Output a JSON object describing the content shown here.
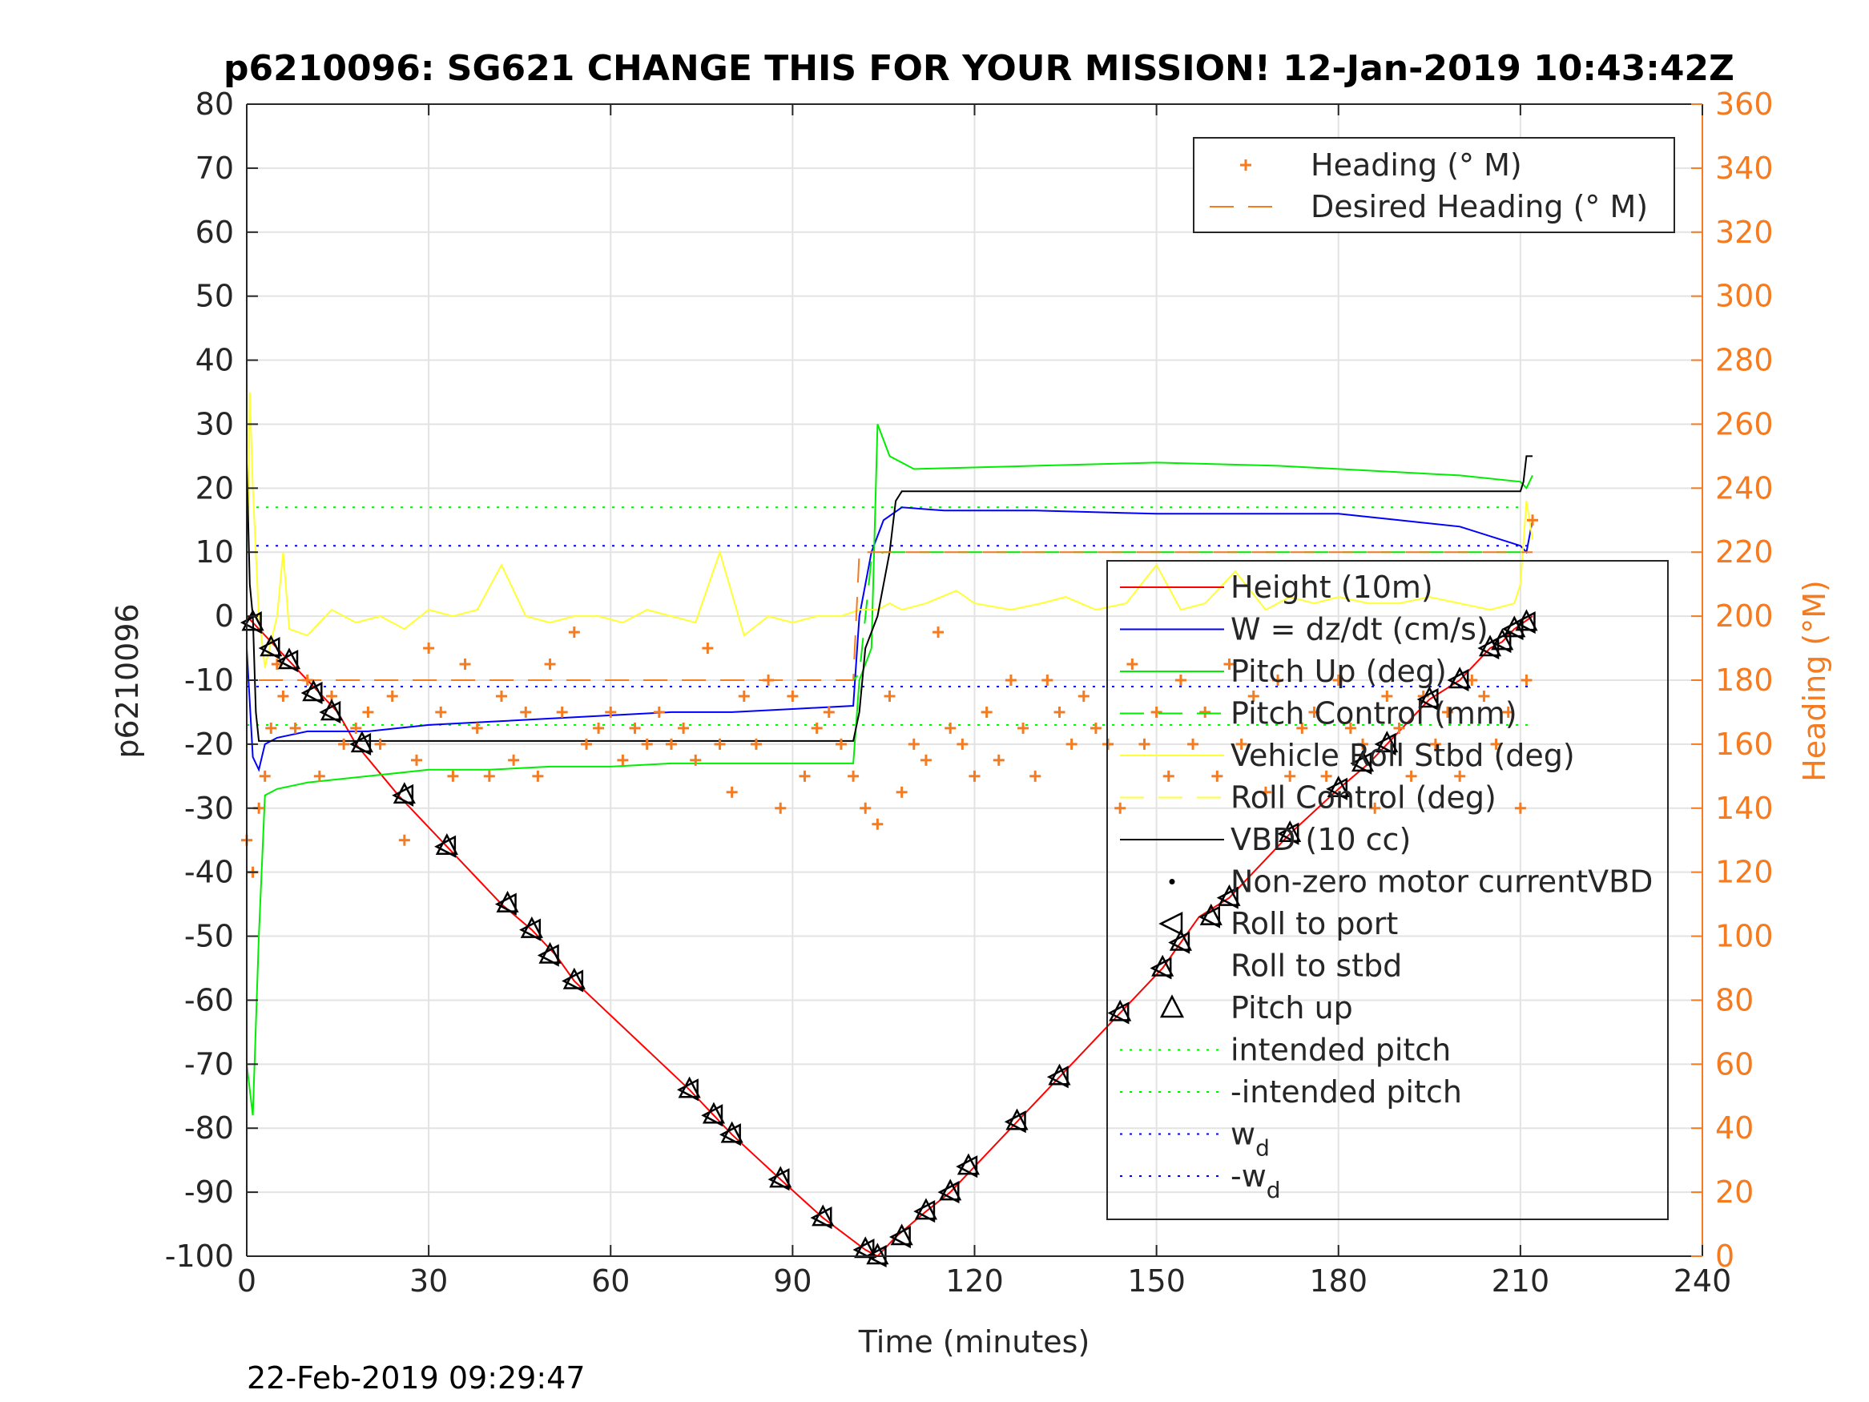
{
  "chart_data": {
    "type": "line",
    "title": "p6210096: SG621 CHANGE THIS FOR YOUR MISSION! 12-Jan-2019 10:43:42Z",
    "xlabel": "Time (minutes)",
    "ylabel": "p6210096",
    "y2label": "Heading (°M)",
    "footer": "22-Feb-2019 09:29:47",
    "xlim": [
      0,
      240
    ],
    "ylim": [
      -100,
      80
    ],
    "y2lim": [
      0,
      360
    ],
    "xticks": [
      "0",
      "30",
      "60",
      "90",
      "120",
      "150",
      "180",
      "210",
      "240"
    ],
    "yticks": [
      "80",
      "70",
      "60",
      "50",
      "40",
      "30",
      "20",
      "10",
      "0",
      "-10",
      "-20",
      "-30",
      "-40",
      "-50",
      "-60",
      "-70",
      "-80",
      "-90",
      "-100"
    ],
    "y2ticks": [
      "360",
      "340",
      "320",
      "300",
      "280",
      "260",
      "240",
      "220",
      "200",
      "180",
      "160",
      "140",
      "120",
      "100",
      "80",
      "60",
      "40",
      "20",
      "0"
    ],
    "grid": true,
    "colors": {
      "height": "#ff0000",
      "w": "#0000ff",
      "pitch": "#00ee00",
      "roll": "#ffff33",
      "vbd": "#000000",
      "heading": "#f47b20",
      "axis": "#262626"
    },
    "legend_right_axis": {
      "placement": "top-right",
      "entries": [
        {
          "label": "Heading (° M)",
          "style": "plus"
        },
        {
          "label": "Desired Heading (° M)",
          "style": "dashed"
        }
      ]
    },
    "legend_left_axis": {
      "placement": "right",
      "entries": [
        {
          "label": "Height (10m)",
          "style": "line",
          "color": "#ff0000"
        },
        {
          "label": "W = dz/dt (cm/s)",
          "style": "line",
          "color": "#0000ff"
        },
        {
          "label": "Pitch Up (deg)",
          "style": "line",
          "color": "#00ee00"
        },
        {
          "label": "Pitch Control (mm)",
          "style": "dashed",
          "color": "#00ee00"
        },
        {
          "label": "Vehicle Roll Stbd (deg)",
          "style": "line",
          "color": "#ffff33"
        },
        {
          "label": "Roll Control (deg)",
          "style": "dashed",
          "color": "#ffff33"
        },
        {
          "label": "VBD (10 cc)",
          "style": "line",
          "color": "#000000"
        },
        {
          "label": "Non-zero motor currentVBD",
          "style": "dot",
          "color": "#000000"
        },
        {
          "label": "Roll to port",
          "style": "tri-left",
          "color": "#000000"
        },
        {
          "label": "Roll to stbd",
          "style": "none",
          "color": "#000000"
        },
        {
          "label": "Pitch up",
          "style": "tri-up",
          "color": "#000000"
        },
        {
          "label": "intended pitch",
          "style": "dotted",
          "color": "#00ee00"
        },
        {
          "label": "-intended pitch",
          "style": "dotted",
          "color": "#00ee00"
        },
        {
          "label": "w",
          "sub": "d",
          "style": "dotted",
          "color": "#0000ff"
        },
        {
          "label": "-w",
          "sub": "d",
          "style": "dotted",
          "color": "#0000ff"
        }
      ]
    },
    "series": [
      {
        "name": "Height (10m)",
        "x": [
          0,
          1,
          3,
          5,
          8,
          12,
          15,
          18,
          25,
          32,
          42,
          47,
          51,
          54,
          73,
          77,
          80,
          88,
          95,
          102,
          104,
          107,
          112,
          116,
          120,
          127,
          134,
          144,
          151,
          154,
          157,
          162,
          172,
          180,
          185,
          188,
          195,
          200,
          205,
          207,
          209,
          212
        ],
        "y": [
          0,
          -1,
          -3,
          -5,
          -8,
          -12,
          -15,
          -20,
          -28,
          -35,
          -45,
          -49,
          -53,
          -57,
          -74,
          -78,
          -81,
          -88,
          -94,
          -99,
          -100,
          -97,
          -93,
          -90,
          -86,
          -79,
          -72,
          -62,
          -55,
          -51,
          -47,
          -44,
          -34,
          -27,
          -23,
          -20,
          -13,
          -10,
          -5,
          -4,
          -2,
          0
        ]
      },
      {
        "name": "W = dz/dt (cm/s)",
        "x": [
          0,
          1,
          2,
          3,
          5,
          10,
          20,
          30,
          40,
          50,
          60,
          70,
          80,
          90,
          100,
          101,
          103,
          105,
          108,
          115,
          130,
          150,
          170,
          180,
          190,
          200,
          210,
          211,
          212
        ],
        "y": [
          -5,
          -22,
          -24,
          -20,
          -19,
          -18,
          -18,
          -17,
          -16.5,
          -16,
          -15.5,
          -15,
          -15,
          -14.5,
          -14,
          0,
          10,
          15,
          17,
          16.5,
          16.5,
          16,
          16,
          16,
          15,
          14,
          11,
          10,
          15
        ]
      },
      {
        "name": "Pitch Up (deg)",
        "x": [
          0,
          1,
          2,
          3,
          5,
          10,
          20,
          30,
          40,
          50,
          60,
          70,
          80,
          90,
          100,
          101,
          103,
          104,
          106,
          110,
          130,
          150,
          170,
          180,
          190,
          200,
          210,
          211,
          212
        ],
        "y": [
          -70,
          -78,
          -50,
          -28,
          -27,
          -26,
          -25,
          -24,
          -24,
          -23.5,
          -23.5,
          -23,
          -23,
          -23,
          -23,
          -10,
          -5,
          30,
          25,
          23,
          23.5,
          24,
          23.5,
          23,
          22.5,
          22,
          21,
          20,
          22
        ]
      },
      {
        "name": "Pitch Control (mm)",
        "x": [
          2,
          100,
          101,
          103,
          105,
          212
        ],
        "y": [
          -10,
          -10,
          -9,
          9,
          10,
          10
        ]
      },
      {
        "name": "Vehicle Roll Stbd (deg)",
        "x": [
          0,
          0.5,
          1,
          2,
          3,
          5,
          6,
          7,
          10,
          14,
          18,
          22,
          26,
          30,
          34,
          38,
          42,
          46,
          50,
          54,
          58,
          62,
          66,
          70,
          74,
          78,
          82,
          86,
          90,
          94,
          98,
          101,
          104,
          106,
          108,
          112,
          117,
          120,
          126,
          131,
          135,
          140,
          145,
          150,
          154,
          158,
          163,
          168,
          172,
          176,
          180,
          185,
          190,
          195,
          200,
          205,
          209,
          210,
          211,
          212
        ],
        "y": [
          0,
          35,
          20,
          0,
          -8,
          0,
          10,
          -2,
          -3,
          1,
          -1,
          0,
          -2,
          1,
          0,
          1,
          8,
          0,
          -1,
          0,
          0,
          -1,
          1,
          0,
          -1,
          10,
          -3,
          0,
          -1,
          0,
          0,
          1,
          1,
          2,
          1,
          2,
          4,
          2,
          1,
          2,
          3,
          1,
          2,
          8,
          1,
          2,
          7,
          1,
          3,
          2,
          3,
          2,
          2,
          3,
          2,
          1,
          2,
          5,
          18,
          12
        ]
      },
      {
        "name": "VBD (10 cc)",
        "x": [
          0,
          0.5,
          1,
          1.5,
          2,
          100,
          101,
          102,
          104,
          106,
          107,
          108,
          150,
          180,
          210,
          210.5,
          211,
          212
        ],
        "y": [
          24,
          5,
          0,
          -15,
          -19.5,
          -19.5,
          -15,
          -5,
          0,
          10,
          18,
          19.5,
          19.5,
          19.5,
          19.5,
          21,
          25,
          25
        ]
      },
      {
        "name": "intended pitch",
        "x": [
          0,
          212
        ],
        "y": [
          17,
          17
        ]
      },
      {
        "name": "-intended pitch",
        "x": [
          0,
          212
        ],
        "y": [
          -17,
          -17
        ]
      },
      {
        "name": "w_d",
        "x": [
          0,
          212
        ],
        "y": [
          11,
          11
        ]
      },
      {
        "name": "-w_d",
        "x": [
          0,
          212
        ],
        "y": [
          -11,
          -11
        ]
      }
    ],
    "heading": {
      "axis": "right",
      "desired": {
        "x": [
          2,
          100,
          101,
          212
        ],
        "y": [
          180,
          180,
          220,
          220
        ]
      },
      "points_x": [
        0,
        1,
        2,
        3,
        4,
        5,
        6,
        8,
        10,
        12,
        14,
        16,
        18,
        20,
        22,
        24,
        26,
        28,
        30,
        32,
        34,
        36,
        38,
        40,
        42,
        44,
        46,
        48,
        50,
        52,
        54,
        56,
        58,
        60,
        62,
        64,
        66,
        68,
        70,
        72,
        74,
        76,
        78,
        80,
        82,
        84,
        86,
        88,
        90,
        92,
        94,
        96,
        98,
        100,
        102,
        104,
        106,
        108,
        110,
        112,
        114,
        116,
        118,
        120,
        122,
        124,
        126,
        128,
        130,
        132,
        134,
        136,
        138,
        140,
        142,
        144,
        146,
        148,
        150,
        152,
        154,
        156,
        158,
        160,
        162,
        164,
        166,
        168,
        170,
        172,
        174,
        176,
        178,
        180,
        182,
        184,
        186,
        188,
        190,
        192,
        194,
        196,
        198,
        200,
        202,
        204,
        206,
        208,
        210,
        211,
        212
      ],
      "points_y": [
        130,
        120,
        140,
        150,
        165,
        185,
        175,
        165,
        180,
        150,
        175,
        160,
        165,
        170,
        160,
        175,
        130,
        155,
        190,
        170,
        150,
        185,
        165,
        150,
        175,
        155,
        170,
        150,
        185,
        170,
        195,
        160,
        165,
        170,
        155,
        165,
        160,
        170,
        160,
        165,
        155,
        190,
        160,
        145,
        175,
        160,
        180,
        140,
        175,
        150,
        165,
        170,
        160,
        150,
        140,
        135,
        175,
        145,
        160,
        155,
        195,
        165,
        160,
        150,
        170,
        155,
        180,
        165,
        150,
        180,
        170,
        160,
        175,
        165,
        160,
        140,
        185,
        160,
        170,
        150,
        180,
        160,
        170,
        150,
        185,
        160,
        175,
        145,
        180,
        150,
        165,
        170,
        150,
        180,
        165,
        160,
        140,
        175,
        165,
        150,
        175,
        160,
        170,
        150,
        180,
        175,
        160,
        170,
        140,
        180,
        230
      ]
    },
    "markers": {
      "pitch_up": {
        "x": [
          1,
          4,
          7,
          11,
          14,
          19,
          26,
          33,
          43,
          47,
          50,
          54,
          73,
          77,
          80,
          88,
          95,
          102,
          104,
          108,
          112,
          116,
          119,
          127,
          134,
          144,
          151,
          154,
          159,
          162,
          172,
          180,
          184,
          188,
          195,
          200,
          205,
          207,
          209,
          211
        ],
        "y": [
          -1,
          -5,
          -7,
          -12,
          -15,
          -20,
          -28,
          -36,
          -45,
          -49,
          -53,
          -57,
          -74,
          -78,
          -81,
          -88,
          -94,
          -99,
          -100,
          -97,
          -93,
          -90,
          -86,
          -79,
          -72,
          -62,
          -55,
          -51,
          -47,
          -44,
          -34,
          -27,
          -23,
          -20,
          -13,
          -10,
          -5,
          -4,
          -2,
          -1
        ]
      }
    }
  }
}
